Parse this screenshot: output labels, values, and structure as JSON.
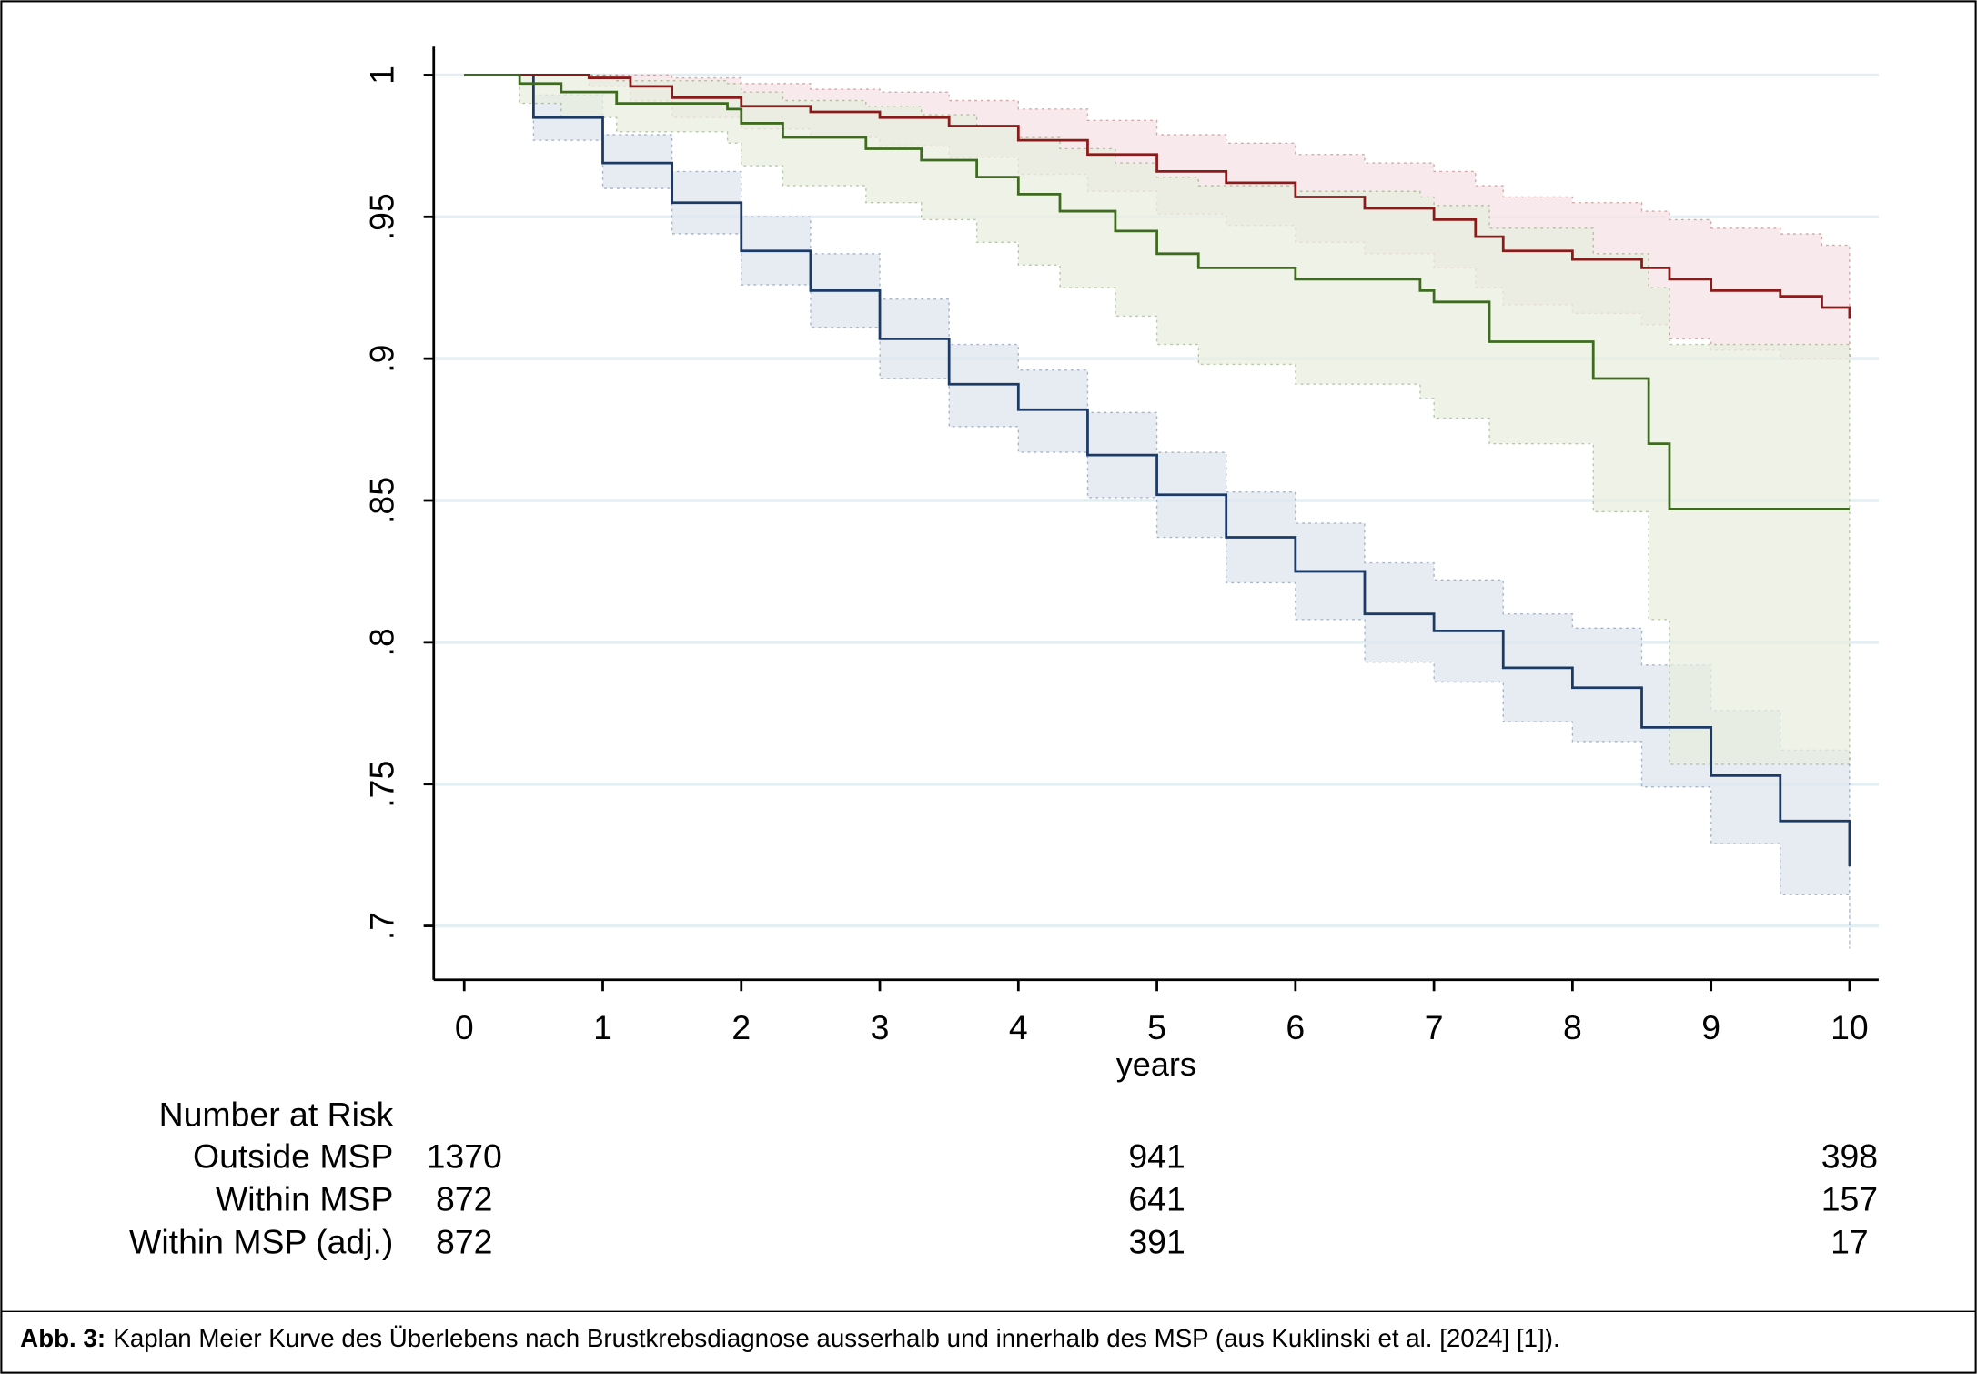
{
  "chart_data": {
    "type": "kaplan-meier",
    "x_label": "years",
    "xlim": [
      -0.22,
      10.21
    ],
    "ylim": [
      0.681,
      1.01
    ],
    "xticks": [
      0,
      1,
      2,
      3,
      4,
      5,
      6,
      7,
      8,
      9,
      10
    ],
    "yticks": [
      {
        "value": 0.7,
        "label": ".7"
      },
      {
        "value": 0.75,
        "label": ".75"
      },
      {
        "value": 0.8,
        "label": ".8"
      },
      {
        "value": 0.85,
        "label": ".85"
      },
      {
        "value": 0.9,
        "label": ".9"
      },
      {
        "value": 0.95,
        "label": ".95"
      },
      1
    ],
    "grid": true,
    "risk_title": "Number at Risk",
    "risk_times": [
      0,
      5,
      10
    ],
    "series": [
      {
        "name": "Outside MSP",
        "color": "#1c3a66",
        "band_color": "#dfe5ef",
        "x": [
          0,
          0.5,
          1,
          1.5,
          2,
          2.5,
          3,
          3.5,
          4,
          4.5,
          5,
          5.5,
          6,
          6.5,
          7,
          7.5,
          8,
          8.5,
          9,
          9.5,
          10
        ],
        "values": [
          1,
          0.985,
          0.969,
          0.955,
          0.938,
          0.924,
          0.907,
          0.891,
          0.882,
          0.866,
          0.852,
          0.837,
          0.825,
          0.81,
          0.804,
          0.791,
          0.784,
          0.77,
          0.753,
          0.737,
          0.721
        ],
        "upper": [
          1,
          0.993,
          0.979,
          0.966,
          0.95,
          0.937,
          0.921,
          0.905,
          0.896,
          0.881,
          0.867,
          0.853,
          0.842,
          0.828,
          0.822,
          0.81,
          0.805,
          0.792,
          0.776,
          0.762,
          0.749
        ],
        "lower": [
          1,
          0.977,
          0.96,
          0.944,
          0.926,
          0.911,
          0.893,
          0.876,
          0.867,
          0.851,
          0.837,
          0.821,
          0.808,
          0.793,
          0.786,
          0.772,
          0.765,
          0.749,
          0.729,
          0.711,
          0.692
        ],
        "at_risk": [
          1370,
          941,
          398
        ]
      },
      {
        "name": "Within MSP",
        "color": "#8b1a1a",
        "band_color": "#f5e3e6",
        "x": [
          0,
          0.9,
          1.2,
          1.5,
          2,
          2.5,
          3,
          3.5,
          4,
          4.5,
          5,
          5.5,
          6,
          6.5,
          7,
          7.3,
          7.5,
          8,
          8.5,
          8.7,
          9,
          9.5,
          9.8,
          10
        ],
        "values": [
          1,
          0.999,
          0.996,
          0.992,
          0.989,
          0.987,
          0.985,
          0.982,
          0.977,
          0.972,
          0.966,
          0.962,
          0.957,
          0.953,
          0.949,
          0.943,
          0.938,
          0.935,
          0.932,
          0.928,
          0.924,
          0.922,
          0.918,
          0.914
        ],
        "upper": [
          1,
          1,
          1,
          0.999,
          0.997,
          0.995,
          0.994,
          0.991,
          0.988,
          0.984,
          0.979,
          0.976,
          0.972,
          0.969,
          0.966,
          0.961,
          0.957,
          0.955,
          0.952,
          0.949,
          0.946,
          0.944,
          0.94,
          0.937
        ],
        "lower": [
          1,
          0.996,
          0.991,
          0.985,
          0.981,
          0.978,
          0.975,
          0.971,
          0.965,
          0.959,
          0.951,
          0.947,
          0.941,
          0.937,
          0.932,
          0.925,
          0.919,
          0.916,
          0.912,
          0.907,
          0.903,
          0.9,
          0.9,
          0.905
        ],
        "at_risk": [
          872,
          641,
          157
        ]
      },
      {
        "name": "Within MSP (adj.)",
        "color": "#3e6b1f",
        "band_color": "#e8eedf",
        "x": [
          0,
          0.4,
          0.7,
          1.1,
          1.9,
          2.0,
          2.3,
          2.9,
          3.3,
          3.7,
          4.0,
          4.3,
          4.7,
          5.0,
          5.3,
          6.0,
          6.9,
          7.0,
          7.4,
          8.15,
          8.55,
          8.7,
          10
        ],
        "values": [
          1,
          0.997,
          0.994,
          0.99,
          0.988,
          0.983,
          0.978,
          0.974,
          0.97,
          0.964,
          0.958,
          0.952,
          0.945,
          0.937,
          0.932,
          0.928,
          0.924,
          0.92,
          0.906,
          0.893,
          0.87,
          0.847,
          0.847
        ],
        "upper": [
          1,
          1,
          1,
          0.998,
          0.997,
          0.994,
          0.991,
          0.989,
          0.986,
          0.982,
          0.978,
          0.974,
          0.969,
          0.964,
          0.961,
          0.959,
          0.957,
          0.954,
          0.946,
          0.937,
          0.925,
          0.905,
          0.905
        ],
        "lower": [
          1,
          0.99,
          0.985,
          0.98,
          0.976,
          0.968,
          0.961,
          0.955,
          0.949,
          0.941,
          0.933,
          0.925,
          0.915,
          0.905,
          0.898,
          0.891,
          0.886,
          0.879,
          0.87,
          0.846,
          0.808,
          0.757,
          0.757
        ],
        "at_risk": [
          872,
          391,
          17
        ]
      }
    ],
    "caption_label": "Abb. 3:",
    "caption": "Kaplan Meier Kurve des Überlebens nach Brustkrebsdiagnose ausserhalb und innerhalb des MSP (aus Kuklinski et al. [2024] [1])."
  }
}
